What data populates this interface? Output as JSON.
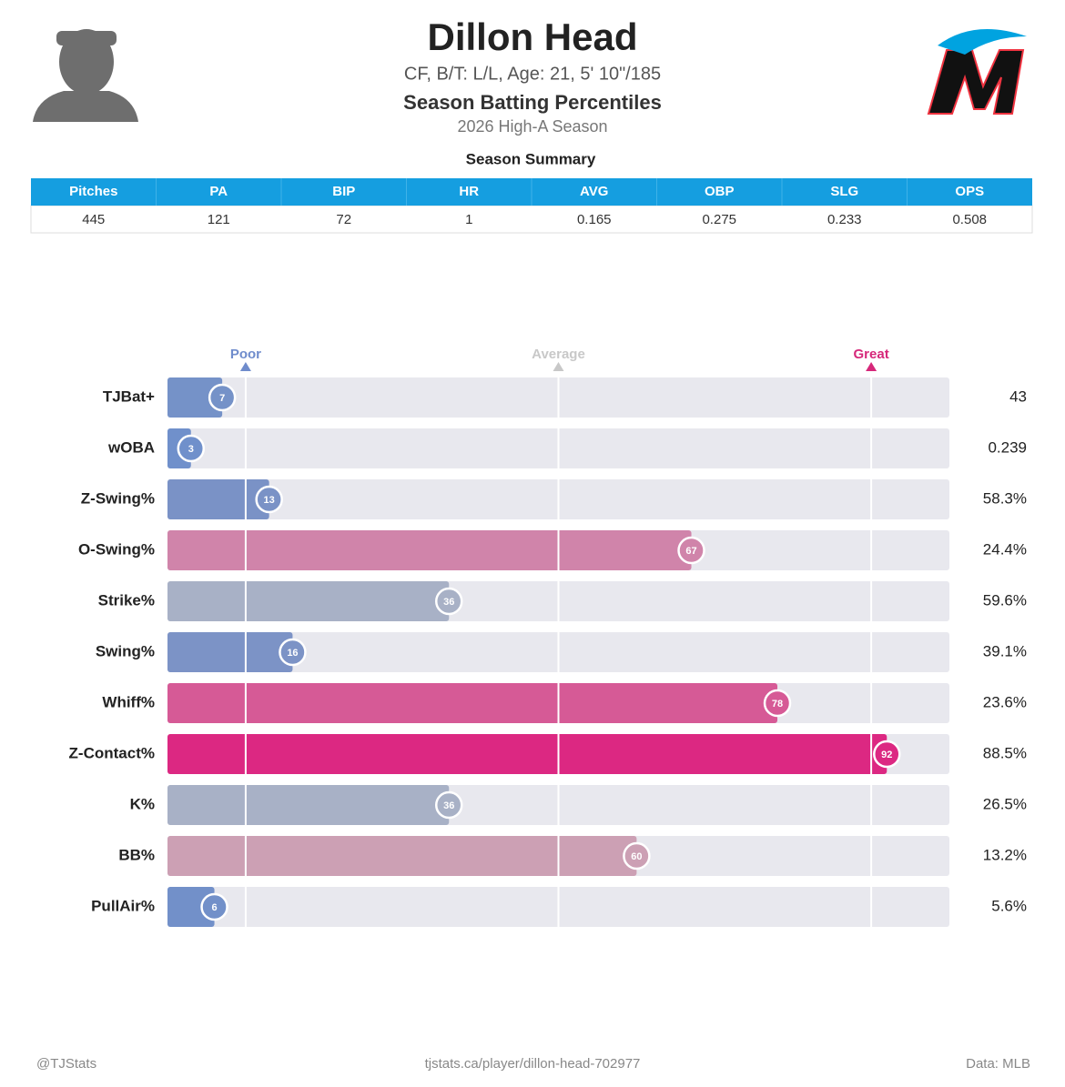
{
  "header": {
    "name": "Dillon Head",
    "info": "CF, B/T: L/L, Age: 21, 5' 10\"/185",
    "subtitle": "Season Batting Percentiles",
    "season": "2026 High-A Season"
  },
  "table": {
    "title": "Season Summary",
    "columns": [
      "Pitches",
      "PA",
      "BIP",
      "HR",
      "AVG",
      "OBP",
      "SLG",
      "OPS"
    ],
    "rows": [
      [
        "445",
        "121",
        "72",
        "1",
        "0.165",
        "0.275",
        "0.233",
        "0.508"
      ]
    ]
  },
  "chart_data": {
    "type": "bar",
    "orientation": "horizontal",
    "categories": [
      "TJBat+",
      "wOBA",
      "Z-Swing%",
      "O-Swing%",
      "Strike%",
      "Swing%",
      "Whiff%",
      "Z-Contact%",
      "K%",
      "BB%",
      "PullAir%"
    ],
    "values": [
      7,
      3,
      13,
      67,
      36,
      16,
      78,
      92,
      36,
      60,
      6
    ],
    "stats": [
      "43",
      "0.239",
      "58.3%",
      "24.4%",
      "59.6%",
      "39.1%",
      "23.6%",
      "88.5%",
      "26.5%",
      "13.2%",
      "5.6%"
    ],
    "colors": [
      "#7592c8",
      "#7090cb",
      "#7a92c6",
      "#d084aa",
      "#a8b1c6",
      "#7c93c6",
      "#d65a96",
      "#dc2882",
      "#a8b1c6",
      "#cca0b4",
      "#7290c9"
    ],
    "xlim": [
      0,
      100
    ],
    "xticks": [
      {
        "value": 10,
        "label": "Poor"
      },
      {
        "value": 50,
        "label": "Average"
      },
      {
        "value": 90,
        "label": "Great"
      }
    ],
    "tick_colors": [
      "#6f8ccc",
      "#c8c8c8",
      "#d6287a"
    ]
  },
  "footer": {
    "left": "@TJStats",
    "center": "tjstats.ca/player/dillon-head-702977",
    "right": "Data: MLB"
  }
}
